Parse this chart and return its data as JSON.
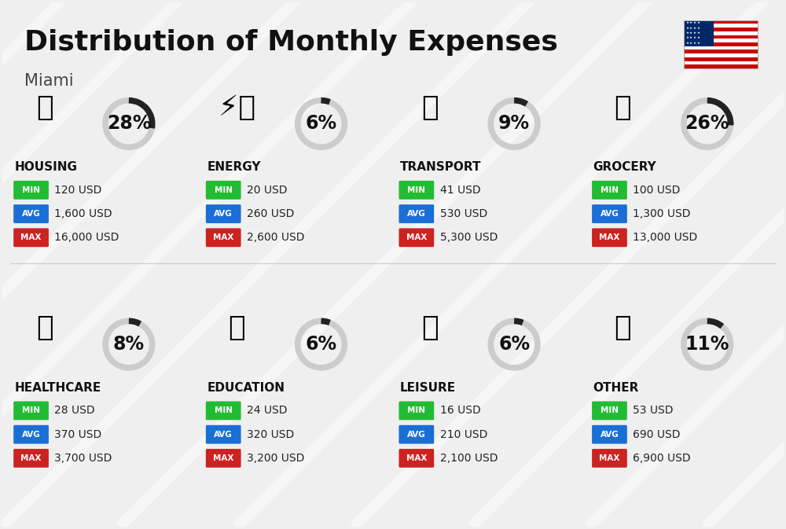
{
  "title": "Distribution of Monthly Expenses",
  "subtitle": "Miami",
  "background_color": "#efefef",
  "categories": [
    {
      "name": "HOUSING",
      "percent": 28,
      "min_val": "120 USD",
      "avg_val": "1,600 USD",
      "max_val": "16,000 USD",
      "row": 0,
      "col": 0
    },
    {
      "name": "ENERGY",
      "percent": 6,
      "min_val": "20 USD",
      "avg_val": "260 USD",
      "max_val": "2,600 USD",
      "row": 0,
      "col": 1
    },
    {
      "name": "TRANSPORT",
      "percent": 9,
      "min_val": "41 USD",
      "avg_val": "530 USD",
      "max_val": "5,300 USD",
      "row": 0,
      "col": 2
    },
    {
      "name": "GROCERY",
      "percent": 26,
      "min_val": "100 USD",
      "avg_val": "1,300 USD",
      "max_val": "13,000 USD",
      "row": 0,
      "col": 3
    },
    {
      "name": "HEALTHCARE",
      "percent": 8,
      "min_val": "28 USD",
      "avg_val": "370 USD",
      "max_val": "3,700 USD",
      "row": 1,
      "col": 0
    },
    {
      "name": "EDUCATION",
      "percent": 6,
      "min_val": "24 USD",
      "avg_val": "320 USD",
      "max_val": "3,200 USD",
      "row": 1,
      "col": 1
    },
    {
      "name": "LEISURE",
      "percent": 6,
      "min_val": "16 USD",
      "avg_val": "210 USD",
      "max_val": "2,100 USD",
      "row": 1,
      "col": 2
    },
    {
      "name": "OTHER",
      "percent": 11,
      "min_val": "53 USD",
      "avg_val": "690 USD",
      "max_val": "6,900 USD",
      "row": 1,
      "col": 3
    }
  ],
  "min_color": "#22bb33",
  "avg_color": "#1a6fd4",
  "max_color": "#cc2222",
  "label_text_color": "#ffffff",
  "value_text_color": "#222222",
  "category_text_color": "#111111",
  "arc_color": "#222222",
  "arc_bg_color": "#cccccc",
  "percent_fontsize": 17,
  "label_fontsize": 7.5,
  "value_fontsize": 10,
  "category_fontsize": 11
}
